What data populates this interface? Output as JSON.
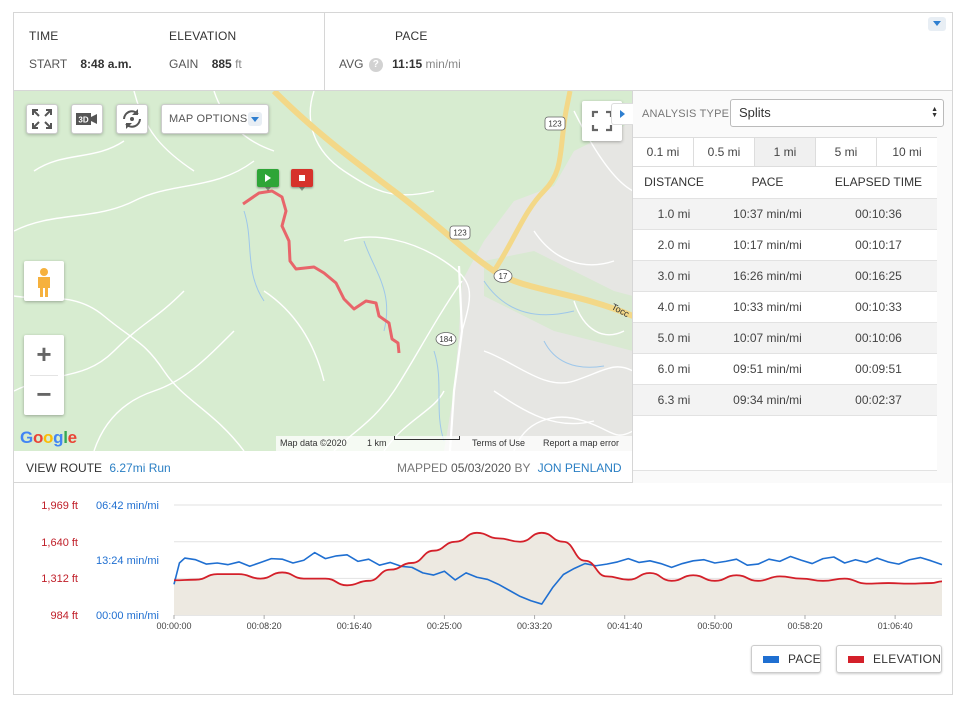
{
  "stats": {
    "time": {
      "heading": "TIME",
      "label": "START",
      "value": "8:48 a.m."
    },
    "elevation": {
      "heading": "ELEVATION",
      "label": "GAIN",
      "value": "885",
      "unit": "ft"
    },
    "pace": {
      "heading": "PACE",
      "label": "AVG",
      "help": "?",
      "value": "11:15",
      "unit": "min/mi"
    }
  },
  "map": {
    "buttons": [
      "expand-icon",
      "3d-view-icon",
      "rotate-icon"
    ],
    "btn_3d_label": "3D",
    "map_options_label": "MAP OPTIONS",
    "road_labels": [
      "123",
      "123",
      "17",
      "184"
    ],
    "road_name_partial": "Tocc",
    "logo_letters": [
      "G",
      "o",
      "o",
      "g",
      "l",
      "e"
    ],
    "attribution": {
      "map_data": "Map data ©2020",
      "scale": "1 km",
      "terms": "Terms of Use",
      "report": "Report a map error"
    },
    "zoom_in": "+",
    "zoom_out": "−"
  },
  "route": {
    "view_label": "VIEW ROUTE",
    "distance_link": "6.27mi Run",
    "mapped_label": "MAPPED",
    "mapped_date": "05/03/2020",
    "by_label": "BY",
    "author": "JON PENLAND"
  },
  "analysis": {
    "type_label": "ANALYSIS TYPE:",
    "type_value": "Splits",
    "tabs": [
      {
        "label": "0.1 mi",
        "active": false
      },
      {
        "label": "0.5 mi",
        "active": false
      },
      {
        "label": "1 mi",
        "active": true
      },
      {
        "label": "5 mi",
        "active": false
      },
      {
        "label": "10 mi",
        "active": false
      }
    ],
    "columns": [
      "DISTANCE",
      "PACE",
      "ELAPSED TIME"
    ],
    "rows": [
      [
        "1.0 mi",
        "10:37 min/mi",
        "00:10:36"
      ],
      [
        "2.0 mi",
        "10:17 min/mi",
        "00:10:17"
      ],
      [
        "3.0 mi",
        "16:26 min/mi",
        "00:16:25"
      ],
      [
        "4.0 mi",
        "10:33 min/mi",
        "00:10:33"
      ],
      [
        "5.0 mi",
        "10:07 min/mi",
        "00:10:06"
      ],
      [
        "6.0 mi",
        "09:51 min/mi",
        "00:09:51"
      ],
      [
        "6.3 mi",
        "09:34 min/mi",
        "00:02:37"
      ]
    ]
  },
  "chart_data": {
    "type": "line",
    "elevation_ticks": [
      "1,969 ft",
      "1,640 ft",
      "1,312 ft",
      "984 ft"
    ],
    "elevation_values": [
      1969,
      1640,
      1312,
      984
    ],
    "pace_ticks": [
      "06:42 min/mi",
      "13:24 min/mi",
      "00:00 min/mi"
    ],
    "x_ticks": [
      "00:00:00",
      "00:08:20",
      "00:16:40",
      "00:25:00",
      "00:33:20",
      "00:41:40",
      "00:50:00",
      "00:58:20",
      "01:06:40"
    ],
    "x_range_min": [
      0,
      71
    ],
    "series": [
      {
        "name": "PACE",
        "color": "#1f6fd1",
        "x_min": [
          0,
          0.5,
          1,
          2,
          3,
          4,
          5,
          6,
          7,
          8,
          9,
          10,
          11,
          12,
          13,
          14,
          15,
          16,
          17,
          18,
          19,
          20,
          21,
          22,
          23,
          24,
          25,
          26,
          27,
          28,
          29,
          30,
          31,
          32,
          33,
          34,
          35,
          36,
          37,
          38,
          39,
          40,
          41,
          42,
          43,
          44,
          45,
          46,
          47,
          48,
          49,
          50,
          51,
          52,
          53,
          54,
          55,
          56,
          57,
          58,
          59,
          60,
          61,
          62,
          63,
          64,
          65,
          66,
          67,
          68,
          69,
          70,
          71
        ],
        "values_min_per_mi": [
          5.6,
          9.5,
          10.4,
          10.1,
          9.3,
          9.5,
          9.2,
          9.7,
          8.9,
          9.6,
          10.3,
          10.2,
          9.5,
          10.0,
          11.4,
          10.3,
          10.8,
          11.0,
          9.8,
          10.2,
          9.1,
          9.6,
          8.9,
          8.7,
          7.7,
          7.3,
          8.0,
          6.4,
          7.7,
          6.9,
          6.5,
          5.6,
          4.5,
          3.4,
          2.6,
          2.0,
          5.0,
          7.4,
          8.5,
          9.4,
          9.0,
          9.3,
          9.7,
          10.3,
          9.6,
          9.9,
          9.4,
          8.7,
          9.4,
          9.9,
          10.1,
          9.5,
          9.8,
          10.2,
          9.1,
          9.3,
          10.2,
          9.8,
          10.7,
          10.0,
          9.4,
          10.3,
          10.6,
          9.5,
          10.1,
          9.6,
          10.4,
          9.7,
          9.3,
          10.1,
          10.5,
          9.9,
          9.2
        ]
      },
      {
        "name": "ELEVATION",
        "color": "#d4202a",
        "x_min": [
          0,
          2,
          4,
          6,
          8,
          10,
          12,
          14,
          16,
          18,
          20,
          22,
          24,
          26,
          28,
          30,
          32,
          34,
          36,
          38,
          40,
          42,
          44,
          46,
          48,
          50,
          52,
          54,
          56,
          58,
          60,
          62,
          64,
          66,
          68,
          70,
          71
        ],
        "values_ft": [
          1295,
          1300,
          1350,
          1350,
          1310,
          1365,
          1310,
          1310,
          1250,
          1290,
          1390,
          1450,
          1560,
          1640,
          1720,
          1670,
          1640,
          1720,
          1640,
          1470,
          1330,
          1300,
          1360,
          1290,
          1340,
          1290,
          1340,
          1290,
          1330,
          1310,
          1290,
          1310,
          1265,
          1270,
          1265,
          1270,
          1285
        ]
      }
    ],
    "legend": [
      "PACE",
      "ELEVATION"
    ],
    "grid": true
  }
}
